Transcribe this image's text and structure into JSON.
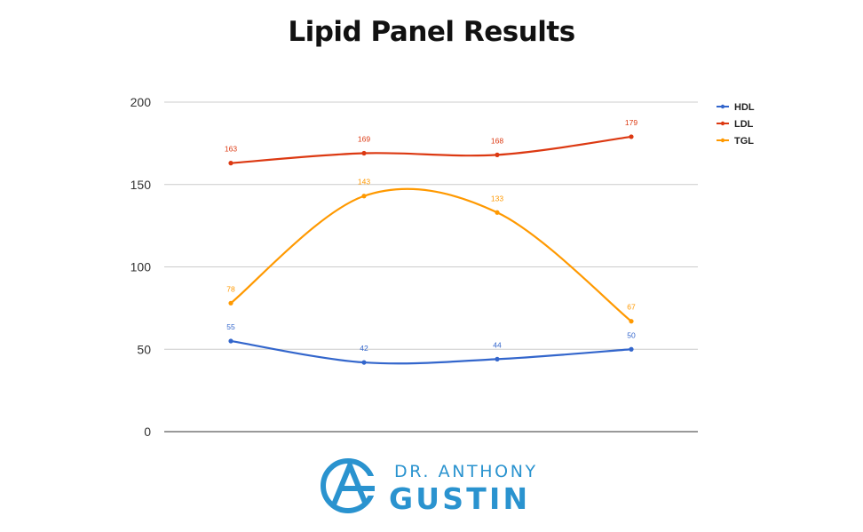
{
  "chart_data": {
    "type": "line",
    "title": "Lipid Panel Results",
    "categories": [
      "",
      "",
      "",
      ""
    ],
    "ylim": [
      0,
      200
    ],
    "yticks": [
      0,
      50,
      100,
      150,
      200
    ],
    "grid": true,
    "smooth": true,
    "legend_position": "top-right",
    "series": [
      {
        "name": "HDL",
        "color": "#3366cc",
        "values": [
          55,
          42,
          44,
          50
        ]
      },
      {
        "name": "LDL",
        "color": "#dc3912",
        "values": [
          163,
          169,
          168,
          179
        ]
      },
      {
        "name": "TGL",
        "color": "#ff9900",
        "values": [
          78,
          143,
          133,
          67
        ]
      }
    ]
  },
  "logo": {
    "line1": "DR. ANTHONY",
    "line2": "GUSTIN",
    "color": "#2a93cf"
  }
}
